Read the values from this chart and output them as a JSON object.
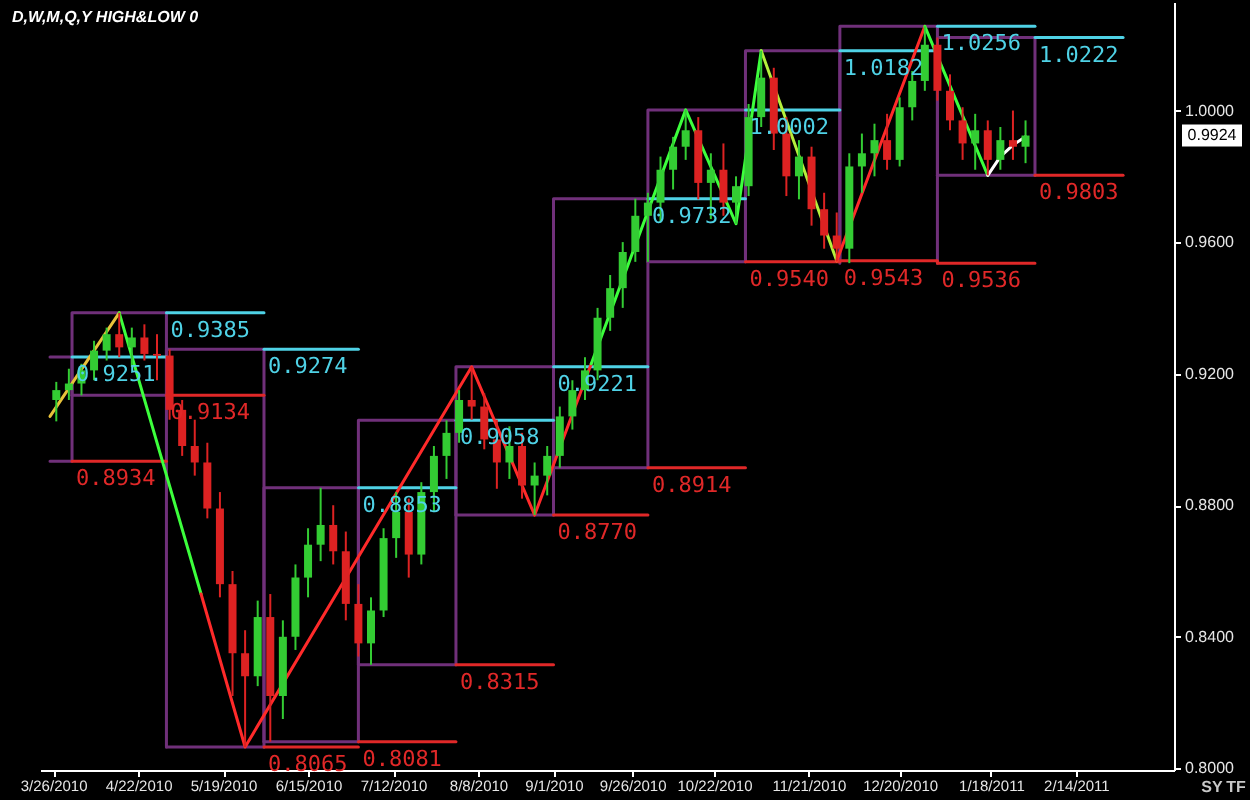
{
  "chart_data": {
    "type": "candlestick",
    "title": "D,W,M,Q,Y HIGH&LOW 0",
    "xlim": [
      "2010-03-25",
      "2011-03-14"
    ],
    "xticks": [
      {
        "value": "2010-03-26",
        "label": "3/26/2010"
      },
      {
        "value": "2010-04-22",
        "label": "4/22/2010"
      },
      {
        "value": "2010-05-19",
        "label": "5/19/2010"
      },
      {
        "value": "2010-06-15",
        "label": "6/15/2010"
      },
      {
        "value": "2010-07-12",
        "label": "7/12/2010"
      },
      {
        "value": "2010-08-08",
        "label": "8/8/2010"
      },
      {
        "value": "2010-09-01",
        "label": "9/1/2010"
      },
      {
        "value": "2010-09-26",
        "label": "9/26/2010"
      },
      {
        "value": "2010-10-22",
        "label": "10/22/2010"
      },
      {
        "value": "2010-11-21",
        "label": "11/21/2010"
      },
      {
        "value": "2010-12-20",
        "label": "12/20/2010"
      },
      {
        "value": "2011-01-18",
        "label": "1/18/2011"
      },
      {
        "value": "2011-02-14",
        "label": "2/14/2011"
      }
    ],
    "ylim": [
      0.7995,
      1.033
    ],
    "yticks": [
      {
        "value": 0.8,
        "label": "0.8000"
      },
      {
        "value": 0.84,
        "label": "0.8400"
      },
      {
        "value": 0.88,
        "label": "0.8800"
      },
      {
        "value": 0.92,
        "label": "0.9200"
      },
      {
        "value": 0.96,
        "label": "0.9600"
      },
      {
        "value": 1.0,
        "label": "1.0000"
      }
    ],
    "grid": false,
    "x": [
      "2010-03-27",
      "2010-03-31",
      "2010-04-04",
      "2010-04-08",
      "2010-04-12",
      "2010-04-16",
      "2010-04-20",
      "2010-04-24",
      "2010-04-28",
      "2010-05-02",
      "2010-05-06",
      "2010-05-10",
      "2010-05-14",
      "2010-05-18",
      "2010-05-22",
      "2010-05-26",
      "2010-05-30",
      "2010-06-03",
      "2010-06-07",
      "2010-06-11",
      "2010-06-15",
      "2010-06-19",
      "2010-06-23",
      "2010-06-27",
      "2010-07-01",
      "2010-07-05",
      "2010-07-09",
      "2010-07-13",
      "2010-07-17",
      "2010-07-21",
      "2010-07-25",
      "2010-07-29",
      "2010-08-02",
      "2010-08-06",
      "2010-08-10",
      "2010-08-14",
      "2010-08-18",
      "2010-08-22",
      "2010-08-26",
      "2010-08-30",
      "2010-09-03",
      "2010-09-07",
      "2010-09-11",
      "2010-09-15",
      "2010-09-19",
      "2010-09-23",
      "2010-09-27",
      "2010-10-01",
      "2010-10-05",
      "2010-10-09",
      "2010-10-13",
      "2010-10-17",
      "2010-10-21",
      "2010-10-25",
      "2010-10-29",
      "2010-11-02",
      "2010-11-06",
      "2010-11-10",
      "2010-11-14",
      "2010-11-18",
      "2010-11-22",
      "2010-11-26",
      "2010-11-30",
      "2010-12-04",
      "2010-12-08",
      "2010-12-12",
      "2010-12-16",
      "2010-12-20",
      "2010-12-24",
      "2010-12-28",
      "2011-01-01",
      "2011-01-05",
      "2011-01-09",
      "2011-01-13",
      "2011-01-17",
      "2011-01-21",
      "2011-01-25",
      "2011-01-29"
    ],
    "ohlc": [
      [
        0.912,
        0.9175,
        0.9055,
        0.915
      ],
      [
        0.915,
        0.9215,
        0.912,
        0.917
      ],
      [
        0.917,
        0.923,
        0.9134,
        0.921
      ],
      [
        0.921,
        0.93,
        0.918,
        0.927
      ],
      [
        0.927,
        0.934,
        0.924,
        0.932
      ],
      [
        0.932,
        0.9385,
        0.925,
        0.928
      ],
      [
        0.928,
        0.934,
        0.922,
        0.931
      ],
      [
        0.931,
        0.935,
        0.924,
        0.926
      ],
      [
        0.926,
        0.932,
        0.918,
        0.9255
      ],
      [
        0.9255,
        0.9274,
        0.906,
        0.909
      ],
      [
        0.909,
        0.912,
        0.895,
        0.898
      ],
      [
        0.898,
        0.906,
        0.889,
        0.893
      ],
      [
        0.893,
        0.899,
        0.876,
        0.879
      ],
      [
        0.879,
        0.884,
        0.852,
        0.856
      ],
      [
        0.856,
        0.86,
        0.822,
        0.835
      ],
      [
        0.835,
        0.842,
        0.8065,
        0.828
      ],
      [
        0.828,
        0.851,
        0.825,
        0.846
      ],
      [
        0.846,
        0.853,
        0.8081,
        0.822
      ],
      [
        0.822,
        0.845,
        0.815,
        0.84
      ],
      [
        0.84,
        0.862,
        0.836,
        0.858
      ],
      [
        0.858,
        0.873,
        0.852,
        0.868
      ],
      [
        0.868,
        0.8853,
        0.863,
        0.874
      ],
      [
        0.874,
        0.88,
        0.862,
        0.866
      ],
      [
        0.866,
        0.872,
        0.845,
        0.85
      ],
      [
        0.85,
        0.856,
        0.834,
        0.838
      ],
      [
        0.838,
        0.852,
        0.8315,
        0.848
      ],
      [
        0.848,
        0.873,
        0.846,
        0.87
      ],
      [
        0.87,
        0.884,
        0.864,
        0.878
      ],
      [
        0.878,
        0.882,
        0.858,
        0.865
      ],
      [
        0.865,
        0.887,
        0.862,
        0.884
      ],
      [
        0.884,
        0.898,
        0.878,
        0.895
      ],
      [
        0.895,
        0.9058,
        0.888,
        0.902
      ],
      [
        0.902,
        0.915,
        0.899,
        0.912
      ],
      [
        0.912,
        0.9221,
        0.906,
        0.91
      ],
      [
        0.91,
        0.914,
        0.897,
        0.9
      ],
      [
        0.9,
        0.906,
        0.885,
        0.893
      ],
      [
        0.893,
        0.904,
        0.888,
        0.898
      ],
      [
        0.898,
        0.902,
        0.882,
        0.886
      ],
      [
        0.886,
        0.893,
        0.877,
        0.889
      ],
      [
        0.889,
        0.898,
        0.883,
        0.895
      ],
      [
        0.895,
        0.91,
        0.8914,
        0.907
      ],
      [
        0.907,
        0.918,
        0.903,
        0.915
      ],
      [
        0.915,
        0.925,
        0.912,
        0.921
      ],
      [
        0.921,
        0.94,
        0.918,
        0.937
      ],
      [
        0.937,
        0.95,
        0.933,
        0.946
      ],
      [
        0.946,
        0.96,
        0.94,
        0.957
      ],
      [
        0.957,
        0.9732,
        0.954,
        0.968
      ],
      [
        0.968,
        0.975,
        0.954,
        0.972
      ],
      [
        0.972,
        0.986,
        0.966,
        0.982
      ],
      [
        0.982,
        0.992,
        0.976,
        0.989
      ],
      [
        0.989,
        1.0002,
        0.985,
        0.994
      ],
      [
        0.994,
        0.998,
        0.973,
        0.978
      ],
      [
        0.978,
        0.987,
        0.967,
        0.982
      ],
      [
        0.982,
        0.99,
        0.968,
        0.972
      ],
      [
        0.972,
        0.98,
        0.9656,
        0.977
      ],
      [
        0.977,
        1.002,
        0.974,
        0.998
      ],
      [
        0.998,
        1.0182,
        0.995,
        1.01
      ],
      [
        1.01,
        1.013,
        0.988,
        0.993
      ],
      [
        0.993,
        0.998,
        0.974,
        0.98
      ],
      [
        0.98,
        0.991,
        0.973,
        0.986
      ],
      [
        0.986,
        0.989,
        0.965,
        0.97
      ],
      [
        0.97,
        0.975,
        0.958,
        0.962
      ],
      [
        0.962,
        0.969,
        0.9543,
        0.958
      ],
      [
        0.958,
        0.987,
        0.9536,
        0.983
      ],
      [
        0.983,
        0.993,
        0.975,
        0.987
      ],
      [
        0.987,
        0.996,
        0.98,
        0.991
      ],
      [
        0.991,
        0.999,
        0.982,
        0.985
      ],
      [
        0.985,
        1.004,
        0.983,
        1.001
      ],
      [
        1.001,
        1.012,
        0.997,
        1.009
      ],
      [
        1.009,
        1.0256,
        1.006,
        1.02
      ],
      [
        1.02,
        1.0222,
        1.003,
        1.006
      ],
      [
        1.006,
        1.011,
        0.994,
        0.997
      ],
      [
        0.997,
        1.001,
        0.985,
        0.99
      ],
      [
        0.99,
        0.999,
        0.982,
        0.994
      ],
      [
        0.994,
        0.997,
        0.9803,
        0.985
      ],
      [
        0.985,
        0.995,
        0.982,
        0.991
      ],
      [
        0.991,
        1.0,
        0.985,
        0.989
      ],
      [
        0.989,
        0.997,
        0.984,
        0.9924
      ]
    ],
    "colors": [
      "#33cc33",
      "#33cc33",
      "#33cc33",
      "#33cc33",
      "#33cc33",
      "#dd2222",
      "#33cc33",
      "#dd2222",
      "#dd2222",
      "#dd2222",
      "#dd2222",
      "#dd2222",
      "#dd2222",
      "#dd2222",
      "#dd2222",
      "#dd2222",
      "#33cc33",
      "#dd2222",
      "#33cc33",
      "#33cc33",
      "#33cc33",
      "#33cc33",
      "#dd2222",
      "#dd2222",
      "#dd2222",
      "#33cc33",
      "#33cc33",
      "#33cc33",
      "#dd2222",
      "#33cc33",
      "#33cc33",
      "#33cc33",
      "#33cc33",
      "#dd2222",
      "#dd2222",
      "#dd2222",
      "#33cc33",
      "#dd2222",
      "#33cc33",
      "#33cc33",
      "#33cc33",
      "#33cc33",
      "#33cc33",
      "#33cc33",
      "#33cc33",
      "#33cc33",
      "#33cc33",
      "#33cc33",
      "#33cc33",
      "#33cc33",
      "#33cc33",
      "#dd2222",
      "#33cc33",
      "#dd2222",
      "#33cc33",
      "#33cc33",
      "#33cc33",
      "#dd2222",
      "#dd2222",
      "#33cc33",
      "#dd2222",
      "#dd2222",
      "#dd2222",
      "#33cc33",
      "#33cc33",
      "#33cc33",
      "#dd2222",
      "#33cc33",
      "#33cc33",
      "#33cc33",
      "#dd2222",
      "#dd2222",
      "#dd2222",
      "#33cc33",
      "#dd2222",
      "#33cc33",
      "#dd2222",
      "#33cc33"
    ],
    "series": [
      {
        "type": "line",
        "color": "#70307a",
        "x": [
          "2010-03-25",
          "2010-04-01",
          "2010-04-01",
          "2010-03-25"
        ],
        "values": [
          0.9251,
          0.9251,
          0.8934,
          0.8934
        ]
      },
      {
        "type": "line",
        "color": "#70307a",
        "x": [
          "2010-04-01",
          "2010-04-01",
          "2010-05-01",
          "2010-05-01"
        ],
        "values": [
          0.9134,
          0.9385,
          0.9385,
          0.9134
        ]
      },
      {
        "type": "line",
        "color": "#70307a",
        "x": [
          "2010-04-01",
          "2010-05-01"
        ],
        "values": [
          0.9134,
          0.9134
        ]
      },
      {
        "type": "line",
        "color": "#70307a",
        "x": [
          "2010-05-01",
          "2010-05-01",
          "2010-06-01",
          "2010-06-01"
        ],
        "values": [
          0.8065,
          0.9274,
          0.9274,
          0.8065
        ]
      },
      {
        "type": "line",
        "color": "#70307a",
        "x": [
          "2010-05-01",
          "2010-06-01"
        ],
        "values": [
          0.8065,
          0.8065
        ]
      },
      {
        "type": "line",
        "color": "#70307a",
        "x": [
          "2010-06-01",
          "2010-06-01",
          "2010-07-01",
          "2010-07-01"
        ],
        "values": [
          0.8081,
          0.8853,
          0.8853,
          0.8081
        ]
      },
      {
        "type": "line",
        "color": "#70307a",
        "x": [
          "2010-06-01",
          "2010-07-01"
        ],
        "values": [
          0.8081,
          0.8081
        ]
      },
      {
        "type": "line",
        "color": "#70307a",
        "x": [
          "2010-07-01",
          "2010-07-01",
          "2010-08-01",
          "2010-08-01"
        ],
        "values": [
          0.8315,
          0.9058,
          0.9058,
          0.8315
        ]
      },
      {
        "type": "line",
        "color": "#70307a",
        "x": [
          "2010-07-01",
          "2010-08-01"
        ],
        "values": [
          0.8315,
          0.8315
        ]
      },
      {
        "type": "line",
        "color": "#70307a",
        "x": [
          "2010-08-01",
          "2010-08-01",
          "2010-09-01",
          "2010-09-01"
        ],
        "values": [
          0.877,
          0.9221,
          0.9221,
          0.877
        ]
      },
      {
        "type": "line",
        "color": "#70307a",
        "x": [
          "2010-08-01",
          "2010-09-01"
        ],
        "values": [
          0.877,
          0.877
        ]
      },
      {
        "type": "line",
        "color": "#70307a",
        "x": [
          "2010-09-01",
          "2010-09-01",
          "2010-10-01",
          "2010-10-01"
        ],
        "values": [
          0.8914,
          0.9732,
          0.9732,
          0.8914
        ]
      },
      {
        "type": "line",
        "color": "#70307a",
        "x": [
          "2010-09-01",
          "2010-10-01"
        ],
        "values": [
          0.8914,
          0.8914
        ]
      },
      {
        "type": "line",
        "color": "#70307a",
        "x": [
          "2010-10-01",
          "2010-10-01",
          "2010-11-01",
          "2010-11-01"
        ],
        "values": [
          0.954,
          1.0002,
          1.0002,
          0.954
        ]
      },
      {
        "type": "line",
        "color": "#70307a",
        "x": [
          "2010-10-01",
          "2010-11-01"
        ],
        "values": [
          0.954,
          0.954
        ]
      },
      {
        "type": "line",
        "color": "#70307a",
        "x": [
          "2010-11-01",
          "2010-11-01",
          "2010-12-01",
          "2010-12-01"
        ],
        "values": [
          0.9543,
          1.0182,
          1.0182,
          0.9543
        ]
      },
      {
        "type": "line",
        "color": "#70307a",
        "x": [
          "2010-12-01",
          "2010-12-01",
          "2011-01-01",
          "2011-01-01"
        ],
        "values": [
          0.9536,
          1.0256,
          1.0256,
          0.9536
        ]
      },
      {
        "type": "line",
        "color": "#70307a",
        "x": [
          "2011-01-01",
          "2011-01-01",
          "2011-02-01",
          "2011-02-01"
        ],
        "values": [
          0.9803,
          1.0222,
          1.0222,
          0.9803
        ]
      },
      {
        "type": "line",
        "color": "#70307a",
        "x": [
          "2011-01-01",
          "2011-02-01"
        ],
        "values": [
          0.9803,
          0.9803
        ]
      },
      {
        "type": "line",
        "color": "#4fd2e6",
        "x": [
          "2010-04-01",
          "2010-05-01"
        ],
        "values": [
          0.9251,
          0.9251
        ]
      },
      {
        "type": "line",
        "color": "#e02828",
        "x": [
          "2010-04-01",
          "2010-05-01"
        ],
        "values": [
          0.8934,
          0.8934
        ]
      },
      {
        "type": "line",
        "color": "#4fd2e6",
        "x": [
          "2010-05-01",
          "2010-06-01"
        ],
        "values": [
          0.9385,
          0.9385
        ]
      },
      {
        "type": "line",
        "color": "#e02828",
        "x": [
          "2010-05-01",
          "2010-06-01"
        ],
        "values": [
          0.9134,
          0.9134
        ]
      },
      {
        "type": "line",
        "color": "#4fd2e6",
        "x": [
          "2010-06-01",
          "2010-07-01"
        ],
        "values": [
          0.9274,
          0.9274
        ]
      },
      {
        "type": "line",
        "color": "#e02828",
        "x": [
          "2010-06-01",
          "2010-07-01"
        ],
        "values": [
          0.8065,
          0.8065
        ]
      },
      {
        "type": "line",
        "color": "#4fd2e6",
        "x": [
          "2010-07-01",
          "2010-08-01"
        ],
        "values": [
          0.8853,
          0.8853
        ]
      },
      {
        "type": "line",
        "color": "#e02828",
        "x": [
          "2010-07-01",
          "2010-08-01"
        ],
        "values": [
          0.8081,
          0.8081
        ]
      },
      {
        "type": "line",
        "color": "#4fd2e6",
        "x": [
          "2010-08-01",
          "2010-09-01"
        ],
        "values": [
          0.9058,
          0.9058
        ]
      },
      {
        "type": "line",
        "color": "#e02828",
        "x": [
          "2010-08-01",
          "2010-09-01"
        ],
        "values": [
          0.8315,
          0.8315
        ]
      },
      {
        "type": "line",
        "color": "#4fd2e6",
        "x": [
          "2010-09-01",
          "2010-10-01"
        ],
        "values": [
          0.9221,
          0.9221
        ]
      },
      {
        "type": "line",
        "color": "#e02828",
        "x": [
          "2010-09-01",
          "2010-10-01"
        ],
        "values": [
          0.877,
          0.877
        ]
      },
      {
        "type": "line",
        "color": "#4fd2e6",
        "x": [
          "2010-10-01",
          "2010-11-01"
        ],
        "values": [
          0.9732,
          0.9732
        ]
      },
      {
        "type": "line",
        "color": "#e02828",
        "x": [
          "2010-10-01",
          "2010-11-01"
        ],
        "values": [
          0.8914,
          0.8914
        ]
      },
      {
        "type": "line",
        "color": "#4fd2e6",
        "x": [
          "2010-11-01",
          "2010-12-01"
        ],
        "values": [
          1.0002,
          1.0002
        ]
      },
      {
        "type": "line",
        "color": "#4fd2e6",
        "x": [
          "2010-12-01",
          "2011-01-01"
        ],
        "values": [
          1.0182,
          1.0182
        ]
      },
      {
        "type": "line",
        "color": "#e02828",
        "x": [
          "2010-11-01",
          "2010-12-01",
          "2010-12-01",
          "2011-01-01",
          "2011-01-01",
          "2011-02-01"
        ],
        "values": [
          0.954,
          0.954,
          0.9543,
          0.9543,
          0.9536,
          0.9536
        ]
      },
      {
        "type": "line",
        "color": "#4fd2e6",
        "x": [
          "2011-01-01",
          "2011-02-01"
        ],
        "values": [
          1.0256,
          1.0256
        ]
      },
      {
        "type": "line",
        "color": "#4fd2e6",
        "x": [
          "2011-02-01",
          "2011-03-01"
        ],
        "values": [
          1.0222,
          1.0222
        ]
      },
      {
        "type": "line",
        "color": "#e02828",
        "x": [
          "2011-02-01",
          "2011-03-01"
        ],
        "values": [
          0.9803,
          0.9803
        ]
      },
      {
        "type": "line",
        "color": "#e8c23a",
        "x": [
          "2010-03-25",
          "2010-04-16"
        ],
        "values": [
          0.907,
          0.9385
        ]
      },
      {
        "type": "line",
        "color": "#3cff3c",
        "x": [
          "2010-04-16",
          "2010-05-12"
        ],
        "values": [
          0.9385,
          0.853
        ]
      },
      {
        "type": "line",
        "color": "#ff2a2a",
        "x": [
          "2010-05-12",
          "2010-05-26",
          "2010-08-06",
          "2010-08-26",
          "2010-09-13"
        ],
        "values": [
          0.853,
          0.8065,
          0.9221,
          0.877,
          0.923
        ]
      },
      {
        "type": "line",
        "color": "#3cff3c",
        "x": [
          "2010-09-13",
          "2010-10-13",
          "2010-10-29",
          "2010-11-06"
        ],
        "values": [
          0.923,
          1.0002,
          0.9656,
          1.0182
        ]
      },
      {
        "type": "line",
        "color": "#b4f03c",
        "x": [
          "2010-11-06",
          "2010-11-30"
        ],
        "values": [
          1.0182,
          0.9543
        ]
      },
      {
        "type": "line",
        "color": "#ff2a2a",
        "x": [
          "2010-11-30",
          "2010-12-28"
        ],
        "values": [
          0.9543,
          1.0256
        ]
      },
      {
        "type": "line",
        "color": "#3cff3c",
        "x": [
          "2010-12-28",
          "2011-01-17"
        ],
        "values": [
          1.0256,
          0.9803
        ]
      },
      {
        "type": "line",
        "color": "#ffffff",
        "x": [
          "2011-01-17",
          "2011-01-21",
          "2011-01-25",
          "2011-01-29"
        ],
        "values": [
          0.9803,
          0.986,
          0.9895,
          0.992
        ]
      }
    ],
    "annotations": [
      {
        "text": "0.9251",
        "x": "2010-04-01",
        "y": 0.9251
      },
      {
        "text": "0.8934",
        "x": "2010-04-01",
        "y": 0.8934
      },
      {
        "text": "0.9385",
        "x": "2010-05-01",
        "y": 0.9385
      },
      {
        "text": "0.9134",
        "x": "2010-05-01",
        "y": 0.9134
      },
      {
        "text": "0.9274",
        "x": "2010-06-01",
        "y": 0.9274
      },
      {
        "text": "0.8065",
        "x": "2010-06-01",
        "y": 0.8065
      },
      {
        "text": "0.8853",
        "x": "2010-07-01",
        "y": 0.8853
      },
      {
        "text": "0.8081",
        "x": "2010-07-01",
        "y": 0.8081
      },
      {
        "text": "0.9058",
        "x": "2010-08-01",
        "y": 0.9058
      },
      {
        "text": "0.8315",
        "x": "2010-08-01",
        "y": 0.8315
      },
      {
        "text": "0.9221",
        "x": "2010-09-01",
        "y": 0.9221
      },
      {
        "text": "0.8770",
        "x": "2010-09-01",
        "y": 0.877
      },
      {
        "text": "0.9732",
        "x": "2010-10-01",
        "y": 0.9732
      },
      {
        "text": "0.8914",
        "x": "2010-10-01",
        "y": 0.8914
      },
      {
        "text": "1.0002",
        "x": "2010-11-01",
        "y": 1.0002
      },
      {
        "text": "0.9540",
        "x": "2010-11-01",
        "y": 0.954
      },
      {
        "text": "1.0182",
        "x": "2010-12-01",
        "y": 1.0182
      },
      {
        "text": "0.9543",
        "x": "2010-12-01",
        "y": 0.9543
      },
      {
        "text": "1.0256",
        "x": "2011-01-01",
        "y": 1.0256
      },
      {
        "text": "0.9536",
        "x": "2011-01-01",
        "y": 0.9536
      },
      {
        "text": "1.0222",
        "x": "2011-02-01",
        "y": 1.0222
      },
      {
        "text": "0.9803",
        "x": "2011-02-01",
        "y": 0.9803
      },
      "0.9924",
      "SY",
      "TF"
    ]
  }
}
